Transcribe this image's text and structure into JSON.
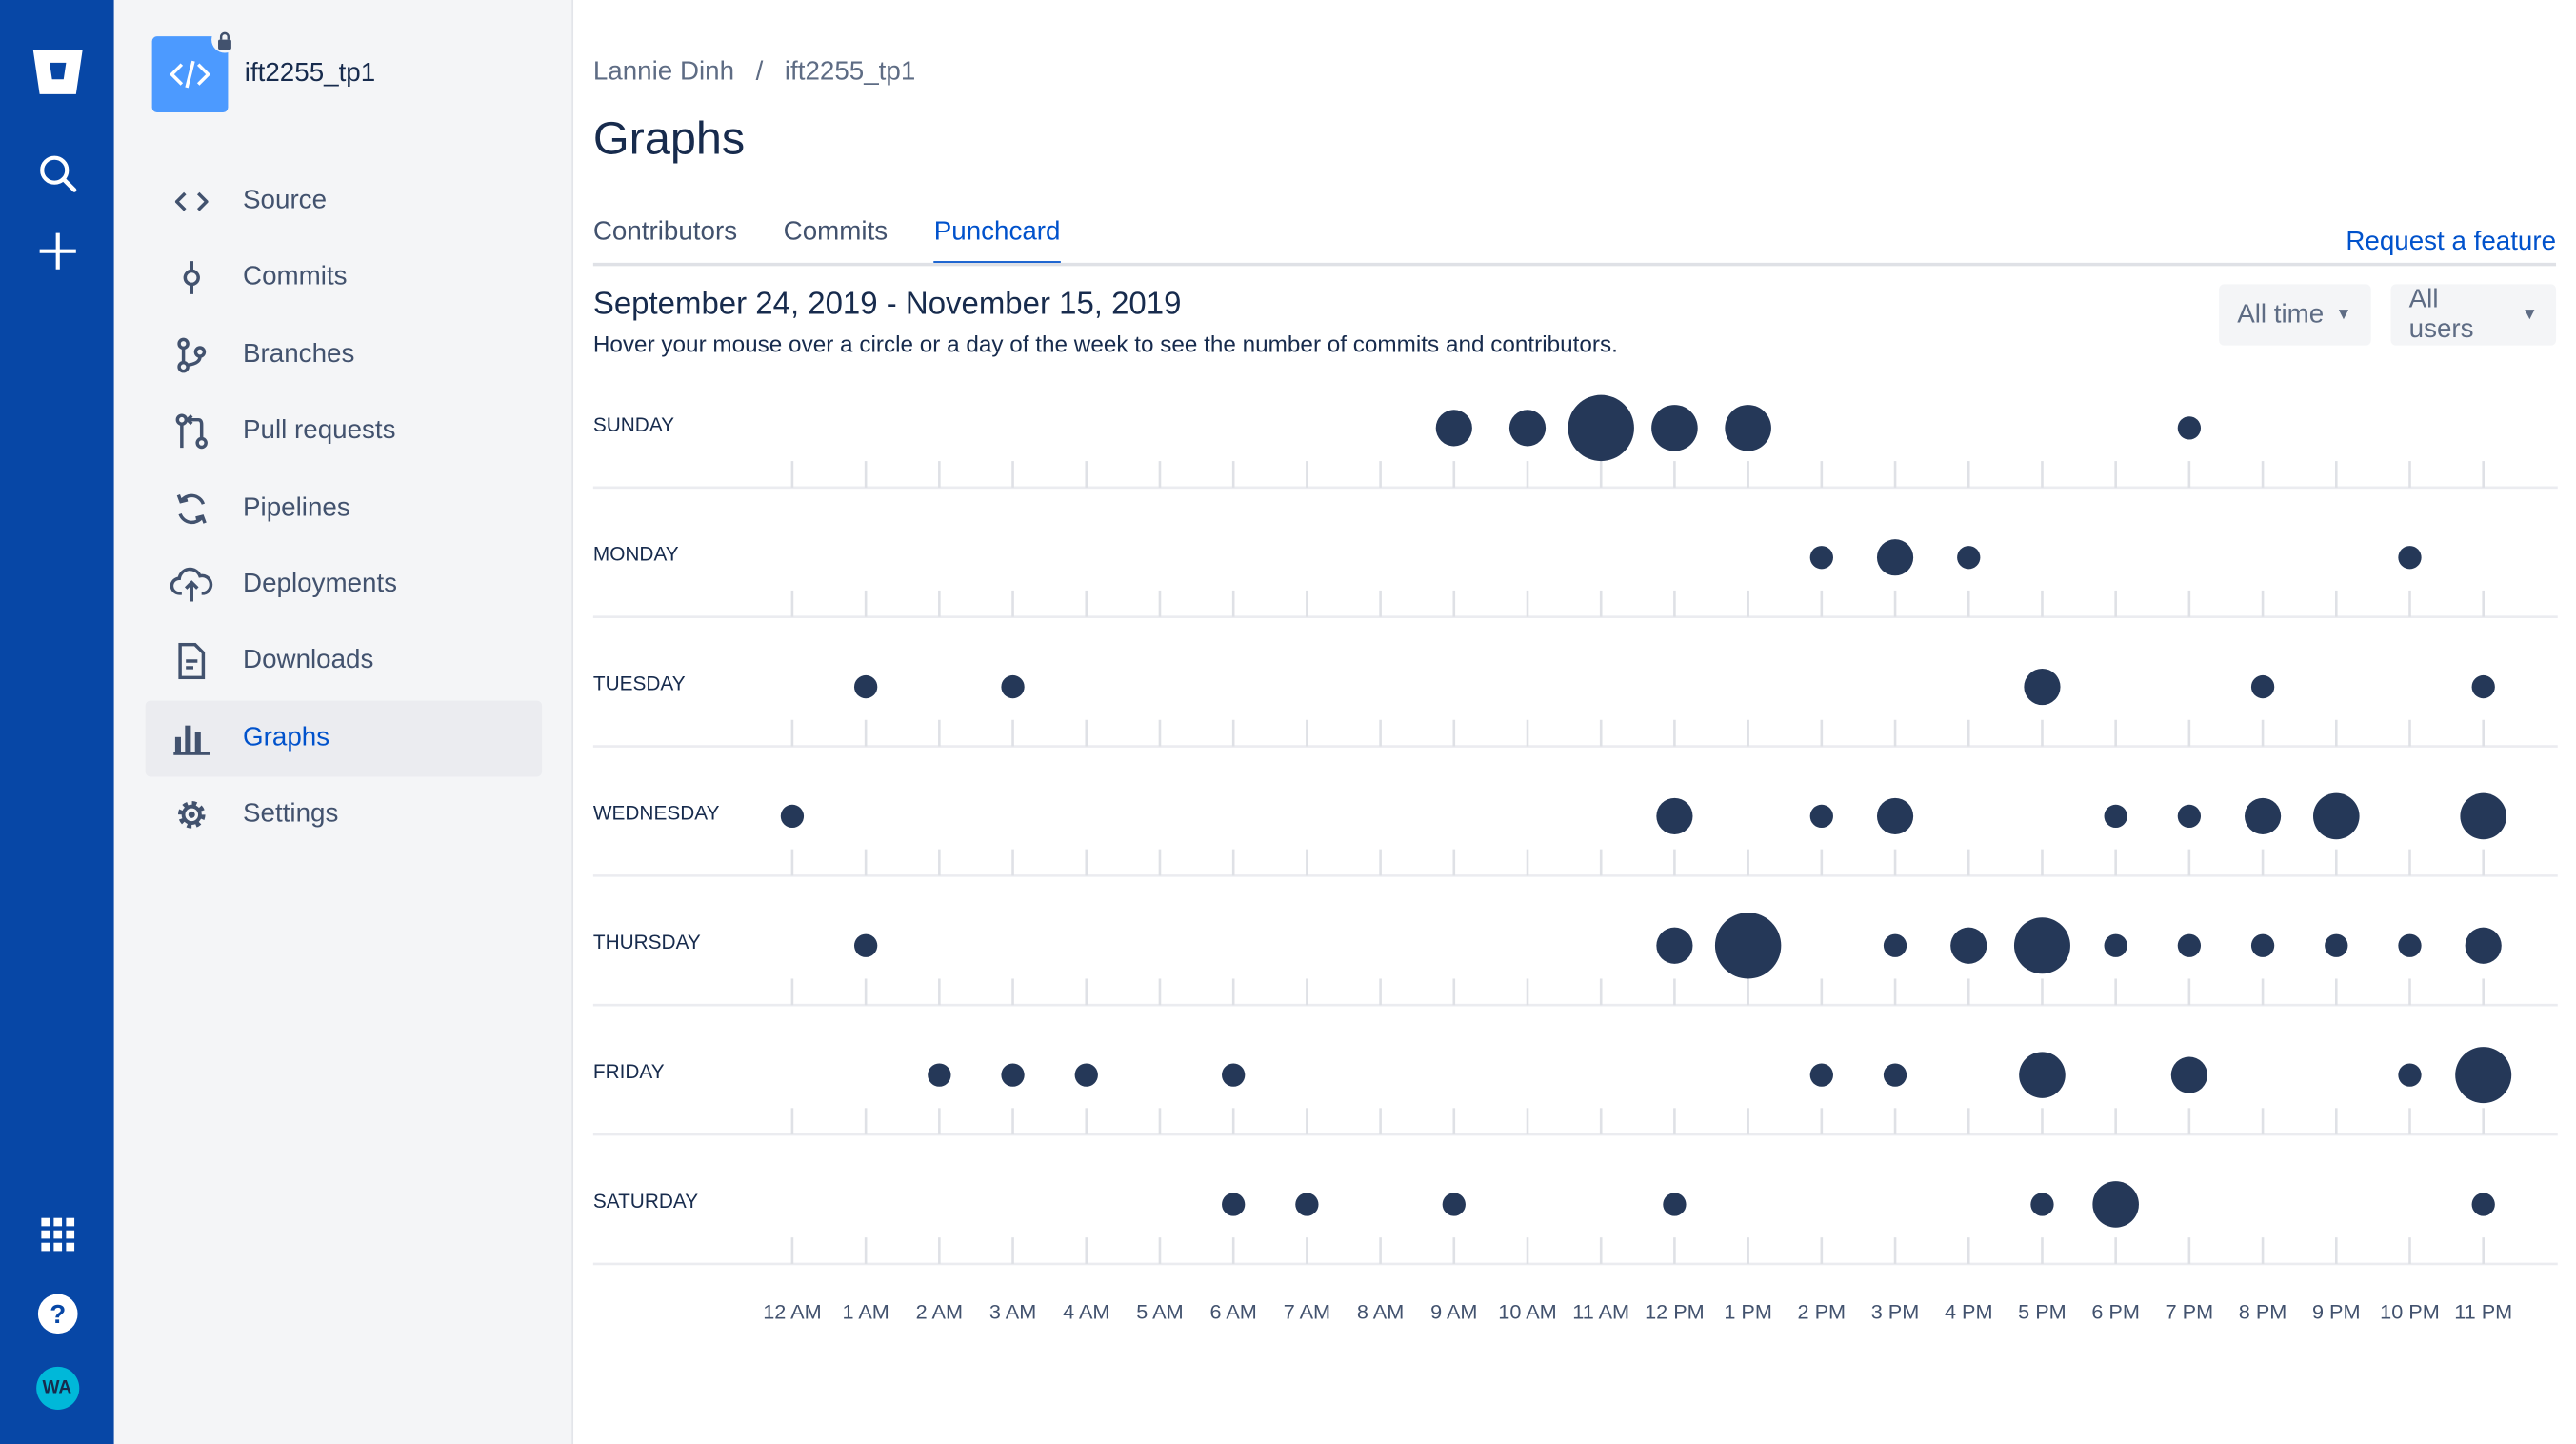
{
  "colors": {
    "global_nav": "#0747a6",
    "accent": "#0052cc",
    "dot": "#253858",
    "repo_avatar": "#4c9aff",
    "avatar_bg": "#00b8d9"
  },
  "global_nav": {
    "avatar_initials": "WA",
    "icons": [
      "bitbucket-logo-icon",
      "search-icon",
      "plus-icon",
      "app-switcher-icon",
      "help-icon"
    ]
  },
  "sidebar": {
    "repo_name": "ift2255_tp1",
    "items": [
      {
        "label": "Source",
        "icon": "code-icon"
      },
      {
        "label": "Commits",
        "icon": "commit-icon"
      },
      {
        "label": "Branches",
        "icon": "branch-icon"
      },
      {
        "label": "Pull requests",
        "icon": "pull-request-icon"
      },
      {
        "label": "Pipelines",
        "icon": "pipelines-icon"
      },
      {
        "label": "Deployments",
        "icon": "deployments-icon"
      },
      {
        "label": "Downloads",
        "icon": "downloads-icon"
      },
      {
        "label": "Graphs",
        "icon": "graph-bar-icon",
        "active": true
      },
      {
        "label": "Settings",
        "icon": "settings-icon"
      }
    ]
  },
  "breadcrumb": {
    "owner": "Lannie Dinh",
    "separator": "/",
    "repo": "ift2255_tp1"
  },
  "page": {
    "title": "Graphs"
  },
  "tabs": [
    {
      "label": "Contributors"
    },
    {
      "label": "Commits"
    },
    {
      "label": "Punchcard",
      "active": true
    }
  ],
  "request_feature": "Request a feature",
  "date_range": "September 24, 2019 - November 15, 2019",
  "hint": "Hover your mouse over a circle or a day of the week to see the number of commits and contributors.",
  "filters": {
    "time": "All time",
    "users": "All users"
  },
  "chart_data": {
    "type": "scatter",
    "days": [
      "SUNDAY",
      "MONDAY",
      "TUESDAY",
      "WEDNESDAY",
      "THURSDAY",
      "FRIDAY",
      "SATURDAY"
    ],
    "hours": [
      "12 AM",
      "1 AM",
      "2 AM",
      "3 AM",
      "4 AM",
      "5 AM",
      "6 AM",
      "7 AM",
      "8 AM",
      "9 AM",
      "10 AM",
      "11 AM",
      "12 PM",
      "1 PM",
      "2 PM",
      "3 PM",
      "4 PM",
      "5 PM",
      "6 PM",
      "7 PM",
      "8 PM",
      "9 PM",
      "10 PM",
      "11 PM"
    ],
    "size_note": "relative commit count (1 = smallest circle)",
    "points": [
      {
        "day": 0,
        "hour": 9,
        "value": 2
      },
      {
        "day": 0,
        "hour": 10,
        "value": 2
      },
      {
        "day": 0,
        "hour": 11,
        "value": 5
      },
      {
        "day": 0,
        "hour": 12,
        "value": 3
      },
      {
        "day": 0,
        "hour": 13,
        "value": 3
      },
      {
        "day": 0,
        "hour": 19,
        "value": 1
      },
      {
        "day": 1,
        "hour": 14,
        "value": 1
      },
      {
        "day": 1,
        "hour": 15,
        "value": 2
      },
      {
        "day": 1,
        "hour": 16,
        "value": 1
      },
      {
        "day": 1,
        "hour": 22,
        "value": 1
      },
      {
        "day": 2,
        "hour": 1,
        "value": 1
      },
      {
        "day": 2,
        "hour": 3,
        "value": 1
      },
      {
        "day": 2,
        "hour": 17,
        "value": 2
      },
      {
        "day": 2,
        "hour": 20,
        "value": 1
      },
      {
        "day": 2,
        "hour": 23,
        "value": 1
      },
      {
        "day": 3,
        "hour": 0,
        "value": 1
      },
      {
        "day": 3,
        "hour": 12,
        "value": 2
      },
      {
        "day": 3,
        "hour": 14,
        "value": 1
      },
      {
        "day": 3,
        "hour": 15,
        "value": 2
      },
      {
        "day": 3,
        "hour": 18,
        "value": 1
      },
      {
        "day": 3,
        "hour": 19,
        "value": 1
      },
      {
        "day": 3,
        "hour": 20,
        "value": 2
      },
      {
        "day": 3,
        "hour": 21,
        "value": 3
      },
      {
        "day": 3,
        "hour": 23,
        "value": 3
      },
      {
        "day": 4,
        "hour": 1,
        "value": 1
      },
      {
        "day": 4,
        "hour": 12,
        "value": 2
      },
      {
        "day": 4,
        "hour": 13,
        "value": 5
      },
      {
        "day": 4,
        "hour": 15,
        "value": 1
      },
      {
        "day": 4,
        "hour": 16,
        "value": 2
      },
      {
        "day": 4,
        "hour": 17,
        "value": 4
      },
      {
        "day": 4,
        "hour": 18,
        "value": 1
      },
      {
        "day": 4,
        "hour": 19,
        "value": 1
      },
      {
        "day": 4,
        "hour": 20,
        "value": 1
      },
      {
        "day": 4,
        "hour": 21,
        "value": 1
      },
      {
        "day": 4,
        "hour": 22,
        "value": 1
      },
      {
        "day": 4,
        "hour": 23,
        "value": 2
      },
      {
        "day": 5,
        "hour": 2,
        "value": 1
      },
      {
        "day": 5,
        "hour": 3,
        "value": 1
      },
      {
        "day": 5,
        "hour": 4,
        "value": 1
      },
      {
        "day": 5,
        "hour": 6,
        "value": 1
      },
      {
        "day": 5,
        "hour": 14,
        "value": 1
      },
      {
        "day": 5,
        "hour": 15,
        "value": 1
      },
      {
        "day": 5,
        "hour": 17,
        "value": 3
      },
      {
        "day": 5,
        "hour": 19,
        "value": 2
      },
      {
        "day": 5,
        "hour": 22,
        "value": 1
      },
      {
        "day": 5,
        "hour": 23,
        "value": 4
      },
      {
        "day": 6,
        "hour": 6,
        "value": 1
      },
      {
        "day": 6,
        "hour": 7,
        "value": 1
      },
      {
        "day": 6,
        "hour": 9,
        "value": 1
      },
      {
        "day": 6,
        "hour": 12,
        "value": 1
      },
      {
        "day": 6,
        "hour": 17,
        "value": 1
      },
      {
        "day": 6,
        "hour": 18,
        "value": 3
      },
      {
        "day": 6,
        "hour": 23,
        "value": 1
      }
    ]
  }
}
